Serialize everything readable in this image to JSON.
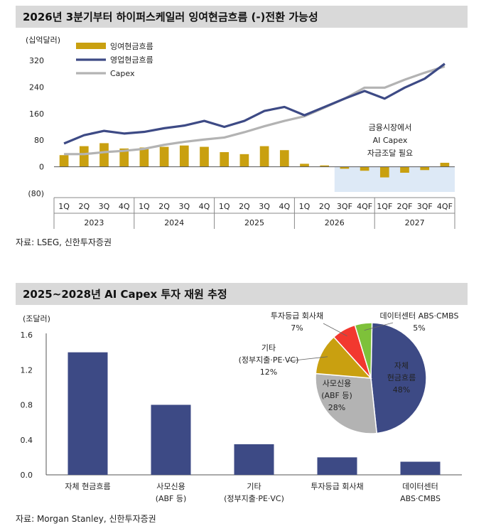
{
  "panel1": {
    "title": "2026년 3분기부터 하이퍼스케일러 잉여현금흐름 (-)전환 가능성",
    "source": "자료: LSEG, 신한투자증권",
    "unit": "(십억달러)",
    "annotation": [
      "금융시장에서",
      "AI Capex",
      "자금조달 필요"
    ]
  },
  "panel2": {
    "title": "2025~2028년 AI Capex 투자 재원 추정",
    "source": "자료: Morgan Stanley, 신한투자증권",
    "unit": "(조달러)"
  },
  "chart_data": [
    {
      "type": "bar+line",
      "title": "2026년 3분기부터 하이퍼스케일러 잉여현금흐름 (-)전환 가능성",
      "ylabel": "(십억달러)",
      "ylim": [
        -80,
        320
      ],
      "yticks": [
        "320",
        "240",
        "160",
        "80",
        "0",
        "(80)"
      ],
      "yticks_values": [
        320,
        240,
        160,
        80,
        0,
        -80
      ],
      "categories": [
        "1Q",
        "2Q",
        "3Q",
        "4Q",
        "1Q",
        "2Q",
        "3Q",
        "4Q",
        "1Q",
        "2Q",
        "3Q",
        "4Q",
        "1Q",
        "2Q",
        "3QF",
        "4QF",
        "1QF",
        "2QF",
        "3QF",
        "4QF"
      ],
      "years": [
        "2023",
        "2024",
        "2025",
        "2026",
        "2027"
      ],
      "series": [
        {
          "name": "잉여현금흐름",
          "kind": "bar",
          "color": "#c9a010",
          "values": [
            35,
            62,
            71,
            55,
            58,
            60,
            64,
            60,
            44,
            38,
            62,
            50,
            9,
            4,
            -6,
            -12,
            -32,
            -18,
            -10,
            12
          ]
        },
        {
          "name": "영업현금흐름",
          "kind": "line",
          "color": "#3d4a85",
          "values": [
            70,
            95,
            108,
            100,
            105,
            116,
            124,
            138,
            120,
            138,
            168,
            180,
            155,
            180,
            205,
            228,
            205,
            238,
            265,
            310
          ]
        },
        {
          "name": "Capex",
          "kind": "line",
          "color": "#b3b3b3",
          "values": [
            38,
            38,
            44,
            48,
            54,
            66,
            75,
            82,
            88,
            104,
            122,
            138,
            152,
            178,
            205,
            238,
            238,
            262,
            283,
            302
          ]
        }
      ],
      "shaded_region": {
        "from": "3QF",
        "to": "4QF"
      }
    },
    {
      "type": "bar",
      "title": "2025~2028년 AI Capex 투자 재원 추정",
      "ylabel": "(조달러)",
      "ylim": [
        0,
        1.6
      ],
      "yticks": [
        "1.6",
        "1.2",
        "0.8",
        "0.4",
        "0.0"
      ],
      "yticks_values": [
        1.6,
        1.2,
        0.8,
        0.4,
        0.0
      ],
      "categories": [
        [
          "자체 현금흐름"
        ],
        [
          "사모신용",
          "(ABF 등)"
        ],
        [
          "기타",
          "(정부지출·PE·VC)"
        ],
        [
          "투자등급 회사채"
        ],
        [
          "데이터센터",
          "ABS·CMBS"
        ]
      ],
      "values": [
        1.4,
        0.8,
        0.35,
        0.2,
        0.15
      ],
      "color": "#3d4a85"
    },
    {
      "type": "pie",
      "slices": [
        {
          "label": [
            "자체",
            "현금흐름",
            "48%"
          ],
          "value": 48,
          "color": "#3d4a85"
        },
        {
          "label": [
            "사모신용",
            "(ABF 등)",
            "28%"
          ],
          "value": 28,
          "color": "#b3b3b3"
        },
        {
          "label": [
            "기타",
            "(정부지출·PE·VC)",
            "12%"
          ],
          "value": 12,
          "color": "#c9a010"
        },
        {
          "label": [
            "투자등급 회사채",
            "7%"
          ],
          "value": 7,
          "color": "#f2382f"
        },
        {
          "label": [
            "데이터센터 ABS·CMBS",
            "5%"
          ],
          "value": 5,
          "color": "#7ec13a"
        }
      ]
    }
  ]
}
